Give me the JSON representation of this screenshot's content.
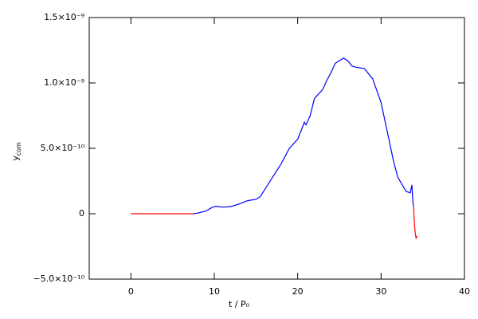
{
  "chart_data": {
    "type": "line",
    "x_label": "t / P₀",
    "y_label": "y",
    "y_label_subscript": "com",
    "xlim": [
      -5,
      40
    ],
    "xticks": [
      0,
      10,
      20,
      30,
      40
    ],
    "ylim": [
      -5e-10,
      1.5e-09
    ],
    "yticks": [
      {
        "value": -5e-10,
        "label": "−5.0×10⁻¹⁰"
      },
      0,
      {
        "value": 5e-10,
        "label": "5.0×10⁻¹⁰"
      },
      {
        "value": 1e-09,
        "label": "1.0×10⁻⁹"
      },
      {
        "value": 1.5e-09,
        "label": "1.5×10⁻⁹"
      }
    ],
    "series": [
      {
        "color": "#ff0000",
        "x": [
          0,
          7.5
        ],
        "values": [
          0,
          0
        ]
      },
      {
        "color": "#0000ff",
        "x": [
          7.5,
          8,
          9,
          9.5,
          10,
          10.5,
          11,
          12,
          13,
          14,
          15,
          15.5,
          16,
          17,
          18,
          19,
          20,
          20.5,
          20.8,
          21,
          21.5,
          22,
          23,
          23.5,
          24,
          24.5,
          25,
          25.5,
          26,
          26.5,
          27,
          28,
          29,
          30,
          31,
          31.5,
          32,
          33,
          33.5,
          33.7,
          33.8,
          33.9
        ],
        "values": [
          0,
          5e-12,
          2e-11,
          4e-11,
          5.5e-11,
          5.5e-11,
          5e-11,
          5.5e-11,
          7.5e-11,
          1e-10,
          1.1e-10,
          1.3e-10,
          1.8e-10,
          2.8e-10,
          3.8e-10,
          5e-10,
          5.7e-10,
          6.5e-10,
          7e-10,
          6.8e-10,
          7.5e-10,
          8.8e-10,
          9.5e-10,
          1.02e-09,
          1.08e-09,
          1.15e-09,
          1.17e-09,
          1.19e-09,
          1.17e-09,
          1.13e-09,
          1.12e-09,
          1.11e-09,
          1.03e-09,
          8.5e-10,
          5.5e-10,
          4e-10,
          2.8e-10,
          1.7e-10,
          1.6e-10,
          2.2e-10,
          1e-10,
          5e-11
        ]
      },
      {
        "color": "#ff0000",
        "x": [
          33.9,
          34,
          34.1,
          34.2,
          34.3
        ],
        "values": [
          5e-11,
          -8e-11,
          -1.5e-10,
          -1.9e-10,
          -1.7e-10
        ]
      }
    ]
  }
}
